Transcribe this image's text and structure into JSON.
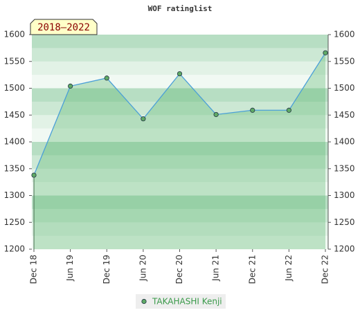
{
  "chart_data": {
    "type": "line",
    "title": "WOF ratinglist",
    "annotation": "2018–2022",
    "categories": [
      "Dec 18",
      "Jun 19",
      "Dec 19",
      "Jun 20",
      "Dec 20",
      "Jun 21",
      "Dec 21",
      "Jun 22",
      "Dec 22"
    ],
    "series": [
      {
        "name": "TAKAHASHI Kenji",
        "color": "#5faa66",
        "line_color": "#4a9fd8",
        "area_color": "#5cb870",
        "values": [
          1338,
          1504,
          1519,
          1443,
          1527,
          1451,
          1459,
          1459,
          1566
        ]
      }
    ],
    "ylim": [
      1200,
      1600
    ],
    "yticks": [
      1200,
      1250,
      1300,
      1350,
      1400,
      1450,
      1500,
      1550,
      1600
    ],
    "y2lim": [
      1200,
      1600
    ],
    "y2ticks": [
      1200,
      1250,
      1300,
      1350,
      1400,
      1450,
      1500,
      1550,
      1600
    ],
    "legend": "bottom"
  }
}
